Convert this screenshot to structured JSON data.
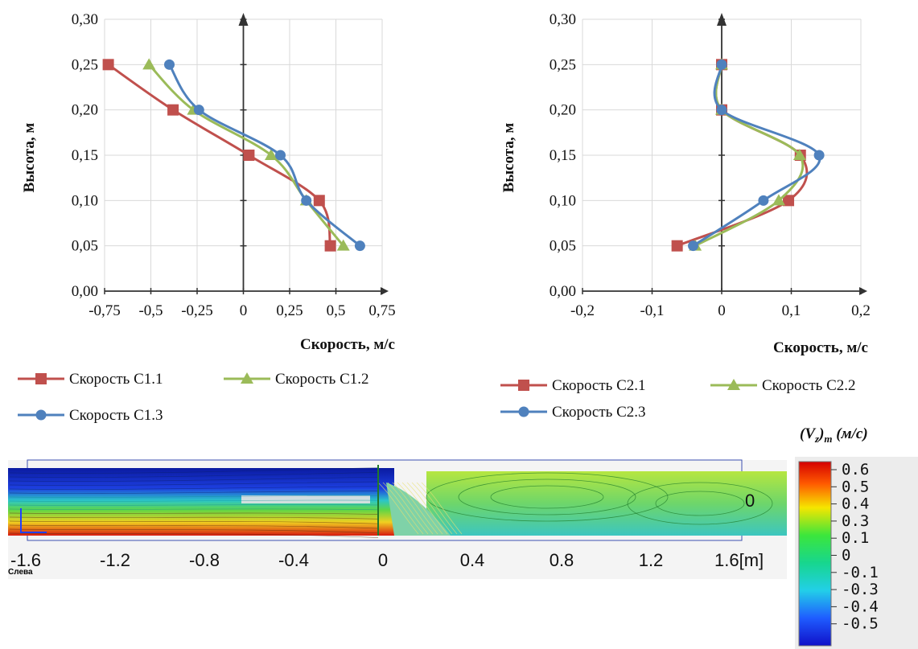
{
  "chart_data": [
    {
      "type": "line",
      "xlabel": "Скорость, м/с",
      "ylabel": "Высота, м",
      "xlim": [
        -0.75,
        0.75
      ],
      "ylim": [
        0,
        0.3
      ],
      "xticks": [
        "-0,75",
        "-0,5",
        "-0,25",
        "0",
        "0,25",
        "0,5",
        "0,75"
      ],
      "yticks": [
        "0,00",
        "0,05",
        "0,10",
        "0,15",
        "0,20",
        "0,25",
        "0,30"
      ],
      "grid": true,
      "legend_position": "bottom",
      "series": [
        {
          "name": "Скорость С1.1",
          "color": "#c0504d",
          "marker": "square",
          "x": [
            0.47,
            0.41,
            0.03,
            -0.38,
            -0.73
          ],
          "y": [
            0.05,
            0.1,
            0.15,
            0.2,
            0.25
          ]
        },
        {
          "name": "Скорость С1.2",
          "color": "#9bbb59",
          "marker": "triangle",
          "x": [
            0.54,
            0.34,
            0.15,
            -0.27,
            -0.51
          ],
          "y": [
            0.05,
            0.1,
            0.15,
            0.2,
            0.25
          ]
        },
        {
          "name": "Скорость С1.3",
          "color": "#4f81bd",
          "marker": "circle",
          "x": [
            0.63,
            0.34,
            0.2,
            -0.24,
            -0.4
          ],
          "y": [
            0.05,
            0.1,
            0.15,
            0.2,
            0.25
          ]
        }
      ]
    },
    {
      "type": "line",
      "xlabel": "Скорость, м/с",
      "ylabel": "Высота, м",
      "xlim": [
        -0.2,
        0.2
      ],
      "ylim": [
        0,
        0.3
      ],
      "xticks": [
        "-0,2",
        "-0,1",
        "0",
        "0,1",
        "0,2"
      ],
      "yticks": [
        "0,00",
        "0,05",
        "0,10",
        "0,15",
        "0,20",
        "0,25",
        "0,30"
      ],
      "grid": true,
      "legend_position": "bottom",
      "series": [
        {
          "name": "Скорость С2.1",
          "color": "#c0504d",
          "marker": "square",
          "x": [
            -0.064,
            0.096,
            0.113,
            0.0,
            0.0
          ],
          "y": [
            0.05,
            0.1,
            0.15,
            0.2,
            0.25
          ]
        },
        {
          "name": "Скорость С2.2",
          "color": "#9bbb59",
          "marker": "triangle",
          "x": [
            -0.038,
            0.082,
            0.112,
            0.0,
            0.0
          ],
          "y": [
            0.05,
            0.1,
            0.15,
            0.2,
            0.25
          ]
        },
        {
          "name": "Скорость С2.3",
          "color": "#4f81bd",
          "marker": "circle",
          "x": [
            -0.041,
            0.06,
            0.14,
            0.0,
            0.0
          ],
          "y": [
            0.05,
            0.1,
            0.15,
            0.2,
            0.25
          ]
        }
      ]
    }
  ],
  "simulation": {
    "x_ticks": [
      "-1.6",
      "-1.2",
      "-0.8",
      "-0.4",
      "0",
      "0.4",
      "0.8",
      "1.2",
      "1.6[m]"
    ],
    "side_label": "Слева",
    "zero_label": "0"
  },
  "colorbar": {
    "title_prefix": "(V",
    "title_sub1": "z",
    "title_mid": ")",
    "title_sub2": "m",
    "title_suffix": " (м/с)",
    "ticks": [
      "0.6",
      "0.5",
      "0.4",
      "0.3",
      "0.1",
      "0",
      "-0.1",
      "-0.3",
      "-0.4",
      "-0.5"
    ]
  }
}
